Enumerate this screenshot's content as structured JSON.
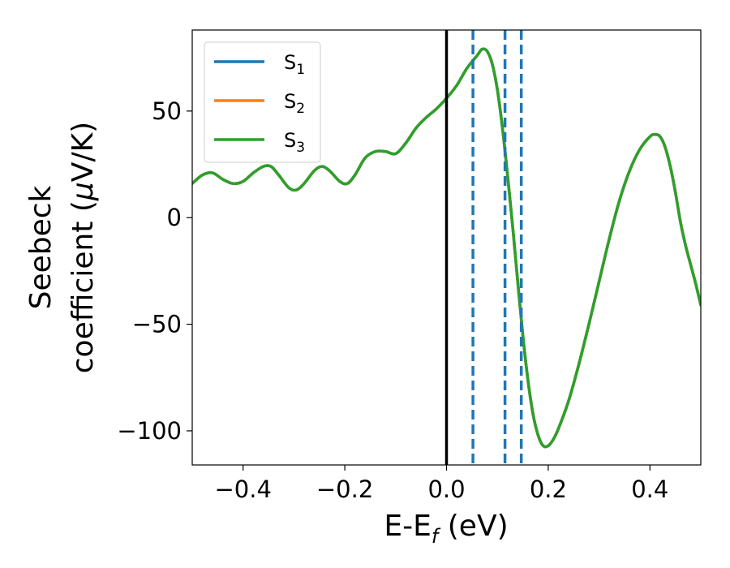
{
  "chart_data": {
    "type": "line",
    "xlabel": "E-E",
    "xlabel_sub": "f",
    "xlabel_unit": " (eV)",
    "ylabel_line1": "Seebeck",
    "ylabel_line2": "coefficient  (",
    "ylabel_mu": "μ",
    "ylabel_unit_tail": "V/K)",
    "xlim": [
      -0.5,
      0.5
    ],
    "ylim": [
      -116,
      88
    ],
    "xticks": [
      -0.4,
      -0.2,
      0.0,
      0.2,
      0.4
    ],
    "xtick_labels": [
      "−0.4",
      "−0.2",
      "0.0",
      "0.2",
      "0.4"
    ],
    "yticks": [
      -100,
      -50,
      0,
      50
    ],
    "ytick_labels": [
      "−100",
      "−50",
      "0",
      "50"
    ],
    "grid": false,
    "legend_position": "top-left",
    "fermi_line": {
      "x": 0.0,
      "color": "#000000",
      "style": "solid"
    },
    "dashed_lines": [
      {
        "x": 0.052,
        "color": "#1f77b4",
        "style": "dashed"
      },
      {
        "x": 0.115,
        "color": "#1f77b4",
        "style": "dashed"
      },
      {
        "x": 0.147,
        "color": "#1f77b4",
        "style": "dashed"
      }
    ],
    "series": [
      {
        "name": "S",
        "sub": "1",
        "color": "#1f77b4"
      },
      {
        "name": "S",
        "sub": "2",
        "color": "#ff7f0e"
      },
      {
        "name": "S",
        "sub": "3",
        "color": "#2ca02c"
      }
    ],
    "x": [
      -0.5,
      -0.48,
      -0.46,
      -0.44,
      -0.42,
      -0.4,
      -0.38,
      -0.36,
      -0.345,
      -0.33,
      -0.31,
      -0.295,
      -0.28,
      -0.26,
      -0.245,
      -0.23,
      -0.21,
      -0.195,
      -0.18,
      -0.16,
      -0.14,
      -0.12,
      -0.1,
      -0.08,
      -0.06,
      -0.04,
      -0.02,
      0.0,
      0.02,
      0.04,
      0.06,
      0.07,
      0.08,
      0.09,
      0.1,
      0.11,
      0.12,
      0.13,
      0.14,
      0.15,
      0.16,
      0.17,
      0.18,
      0.19,
      0.2,
      0.21,
      0.22,
      0.24,
      0.26,
      0.28,
      0.3,
      0.32,
      0.34,
      0.36,
      0.38,
      0.4,
      0.41,
      0.42,
      0.43,
      0.44,
      0.45,
      0.46,
      0.47,
      0.48,
      0.49,
      0.5
    ],
    "y": [
      16,
      20,
      21,
      18,
      16,
      17,
      21,
      24,
      24,
      20,
      14,
      13,
      16,
      22,
      24,
      22,
      17,
      16,
      20,
      28,
      31,
      31,
      30,
      35,
      42,
      47,
      51,
      56,
      62,
      70,
      76,
      79,
      78,
      72,
      60,
      42,
      20,
      -4,
      -30,
      -55,
      -76,
      -92,
      -102,
      -107,
      -107,
      -104,
      -99,
      -86,
      -69,
      -50,
      -30,
      -10,
      8,
      22,
      32,
      38,
      39,
      38,
      33,
      24,
      12,
      -2,
      -13,
      -22,
      -31,
      -41
    ]
  }
}
